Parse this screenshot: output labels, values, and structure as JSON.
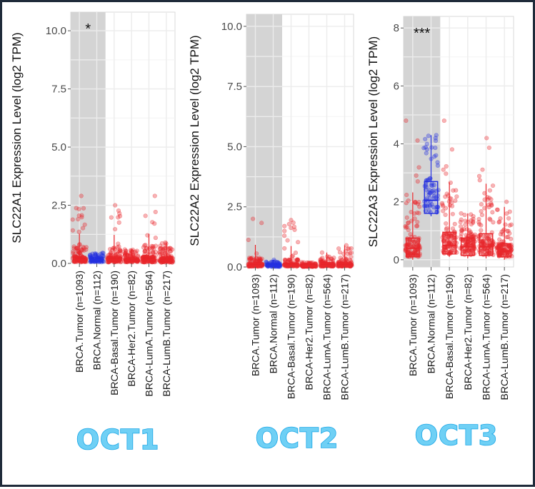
{
  "chart_data": [
    {
      "type": "box",
      "title": "",
      "caption": "OCT1",
      "ylabel": "SLC22A1 Expression Level (log2 TPM)",
      "ylim": [
        0,
        10.8
      ],
      "yticks": [
        "0.0",
        "2.5",
        "5.0",
        "7.5",
        "10.0"
      ],
      "significance": "*",
      "highlight_categories": 2,
      "categories": [
        "BRCA.Tumor (n=1093)",
        "BRCA.Normal (n=112)",
        "BRCA-Basal.Tumor (n=190)",
        "BRCA-Her2.Tumor (n=82)",
        "BRCA-LumA.Tumor (n=564)",
        "BRCA-LumB.Tumor (n=217)"
      ],
      "colors": [
        "#e8262b",
        "#2430e0",
        "#e8262b",
        "#e8262b",
        "#e8262b",
        "#e8262b"
      ],
      "boxes": [
        {
          "q1": 0.05,
          "median": 0.15,
          "q3": 0.3,
          "max": 2.9
        },
        {
          "q1": 0.05,
          "median": 0.15,
          "q3": 0.25,
          "max": 0.45
        },
        {
          "q1": 0.05,
          "median": 0.15,
          "q3": 0.28,
          "max": 2.5
        },
        {
          "q1": 0.05,
          "median": 0.12,
          "q3": 0.22,
          "max": 0.6
        },
        {
          "q1": 0.05,
          "median": 0.15,
          "q3": 0.3,
          "max": 2.9
        },
        {
          "q1": 0.04,
          "median": 0.12,
          "q3": 0.25,
          "max": 0.9
        }
      ]
    },
    {
      "type": "box",
      "title": "",
      "caption": "OCT2",
      "ylabel": "SLC22A2 Expression Level (log2 TPM)",
      "ylim": [
        0,
        10.5
      ],
      "yticks": [
        "0.0",
        "2.5",
        "5.0",
        "7.5",
        "10.0"
      ],
      "significance": "",
      "highlight_categories": 2,
      "categories": [
        "BRCA.Tumor (n=1093)",
        "BRCA.Normal (n=112)",
        "BRCA-Basal.Tumor (n=190)",
        "BRCA-Her2.Tumor (n=82)",
        "BRCA-LumA.Tumor (n=564)",
        "BRCA-LumB.Tumor (n=217)"
      ],
      "colors": [
        "#e8262b",
        "#2430e0",
        "#e8262b",
        "#e8262b",
        "#e8262b",
        "#e8262b"
      ],
      "boxes": [
        {
          "q1": 0.02,
          "median": 0.06,
          "q3": 0.14,
          "max": 2.0
        },
        {
          "q1": 0.01,
          "median": 0.04,
          "q3": 0.08,
          "max": 0.3
        },
        {
          "q1": 0.02,
          "median": 0.06,
          "q3": 0.12,
          "max": 1.95
        },
        {
          "q1": 0.01,
          "median": 0.03,
          "q3": 0.07,
          "max": 0.2
        },
        {
          "q1": 0.02,
          "median": 0.06,
          "q3": 0.14,
          "max": 0.6
        },
        {
          "q1": 0.02,
          "median": 0.06,
          "q3": 0.14,
          "max": 0.9
        }
      ]
    },
    {
      "type": "box",
      "title": "",
      "caption": "OCT3",
      "ylabel": "SLC22A3 Expression Level (log2 TPM)",
      "ylim": [
        -0.25,
        8.4
      ],
      "yticks": [
        "0",
        "2",
        "4",
        "6",
        "8"
      ],
      "significance": "***",
      "highlight_categories": 2,
      "categories": [
        "BRCA.Tumor (n=1093)",
        "BRCA.Normal (n=112)",
        "BRCA-Basal.Tumor (n=190)",
        "BRCA-Her2.Tumor (n=82)",
        "BRCA-LumA.Tumor (n=564)",
        "BRCA-LumB.Tumor (n=217)"
      ],
      "colors": [
        "#e8262b",
        "#2430e0",
        "#e8262b",
        "#e8262b",
        "#e8262b",
        "#e8262b"
      ],
      "boxes": [
        {
          "q1": 0.1,
          "median": 0.4,
          "q3": 0.75,
          "max": 4.8
        },
        {
          "q1": 1.6,
          "median": 2.05,
          "q3": 2.7,
          "max": 4.3
        },
        {
          "q1": 0.2,
          "median": 0.5,
          "q3": 0.95,
          "max": 4.8
        },
        {
          "q1": 0.15,
          "median": 0.45,
          "q3": 0.75,
          "max": 1.6
        },
        {
          "q1": 0.15,
          "median": 0.45,
          "q3": 0.9,
          "max": 4.2
        },
        {
          "q1": 0.1,
          "median": 0.3,
          "q3": 0.55,
          "max": 2.0
        }
      ]
    }
  ]
}
